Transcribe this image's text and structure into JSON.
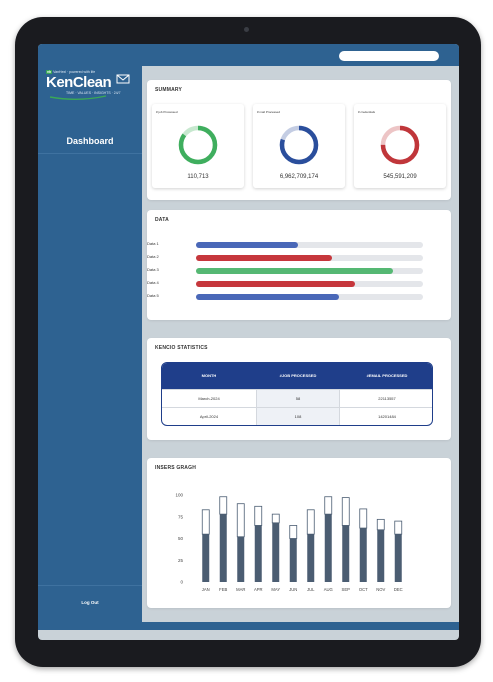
{
  "app": {
    "logo_tagline": "VanHexl · powered with life",
    "logo_brand": "vh",
    "logo_name": "KenClean",
    "logo_subtitle": "TIME · VALUES · INSIGHTS · 24/7"
  },
  "sidebar": {
    "dashboard_label": "Dashboard",
    "logout_label": "Log Out"
  },
  "summary": {
    "title": "SUMMARY",
    "cards": [
      {
        "label": "# job Processed",
        "value": "110,713",
        "color": "#3fae5e",
        "track": "#c7e8cf",
        "fraction": 0.85
      },
      {
        "label": "# mail Processed",
        "value": "6,962,709,174",
        "color": "#2a4e9c",
        "track": "#c4cde3",
        "fraction": 0.8
      },
      {
        "label": "# credentials",
        "value": "545,591,209",
        "color": "#c0363a",
        "track": "#edc5c6",
        "fraction": 0.75
      }
    ]
  },
  "data": {
    "title": "DATA",
    "bars": [
      {
        "label": "Data 1",
        "value": 45,
        "color": "#4a68b8"
      },
      {
        "label": "Data 2",
        "value": 60,
        "color": "#c6373c"
      },
      {
        "label": "Data 3",
        "value": 87,
        "color": "#55b873"
      },
      {
        "label": "Data 4",
        "value": 70,
        "color": "#c6373c"
      },
      {
        "label": "Data 5",
        "value": 63,
        "color": "#4a68b8"
      }
    ]
  },
  "stats": {
    "title": "KENCIO STATISTICS",
    "columns": [
      "MONTH",
      "#JOB PROCESSED",
      "#EMAIL PROCESSED"
    ],
    "rows": [
      [
        "March-2024",
        "58",
        "22113557"
      ],
      [
        "April-2024",
        "108",
        "14201484"
      ]
    ]
  },
  "chart_data": {
    "type": "bar",
    "title": "INSERS GRAGH",
    "categories": [
      "JAN",
      "FEB",
      "MAR",
      "APR",
      "MAY",
      "JUN",
      "JUL",
      "AUG",
      "SEP",
      "OCT",
      "NOV",
      "DEC"
    ],
    "series": [
      {
        "values": [
          55,
          78,
          52,
          65,
          68,
          50,
          55,
          78,
          65,
          62,
          60,
          55
        ]
      },
      {
        "values": [
          28,
          20,
          38,
          22,
          10,
          15,
          28,
          20,
          32,
          22,
          12,
          15
        ]
      }
    ],
    "stacked": true,
    "yticks": [
      0,
      25,
      50,
      75,
      100
    ],
    "ylim": [
      0,
      100
    ],
    "colors": {
      "base": "#4b5d72",
      "top": "#ffffff",
      "outline": "#4b5d72"
    }
  }
}
